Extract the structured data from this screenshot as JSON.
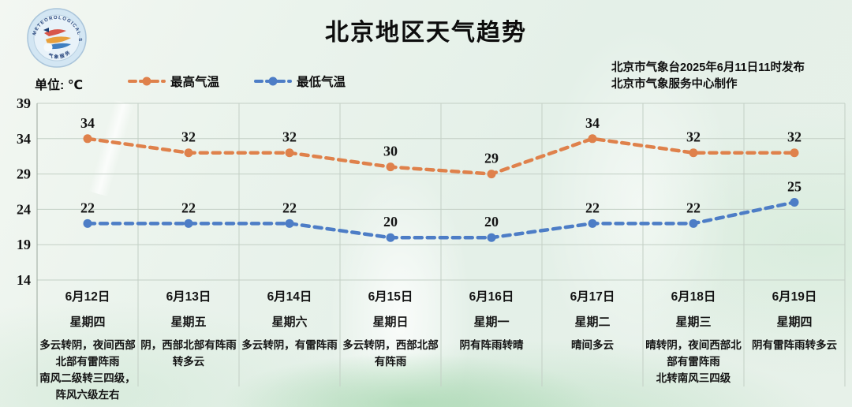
{
  "header": {
    "title": "北京地区天气趋势",
    "publisher_line1": "北京市气象台2025年6月11日11时发布",
    "publisher_line2": "北京市气象服务中心制作",
    "logo_ring_text": "METEOROLOGICAL SERVICE"
  },
  "legend": {
    "unit_label": "单位: ℃",
    "max_label": "最高气温",
    "min_label": "最低气温",
    "max_color": "#df814b",
    "min_color": "#4d7dc6"
  },
  "chart_data": {
    "type": "line",
    "line_style": "dashed",
    "grid": true,
    "legend_position": "top-left",
    "ylabel": "℃",
    "ylim": [
      14,
      39
    ],
    "yticks": [
      39,
      34,
      29,
      24,
      19,
      14
    ],
    "categories": [
      "6月12日",
      "6月13日",
      "6月14日",
      "6月15日",
      "6月16日",
      "6月17日",
      "6月18日",
      "6月19日"
    ],
    "series": [
      {
        "name": "最高气温",
        "color": "#df814b",
        "values": [
          34,
          32,
          32,
          30,
          29,
          34,
          32,
          32
        ]
      },
      {
        "name": "最低气温",
        "color": "#4d7dc6",
        "values": [
          22,
          22,
          22,
          20,
          20,
          22,
          22,
          25
        ]
      }
    ]
  },
  "forecast": [
    {
      "date": "6月12日",
      "weekday": "星期四",
      "weather": "多云转阴，夜间西部北部有雷阵雨",
      "wind": "南风二级转三四级，阵风六级左右"
    },
    {
      "date": "6月13日",
      "weekday": "星期五",
      "weather": "阴，西部北部有阵雨转多云",
      "wind": ""
    },
    {
      "date": "6月14日",
      "weekday": "星期六",
      "weather": "多云转阴，有雷阵雨",
      "wind": ""
    },
    {
      "date": "6月15日",
      "weekday": "星期日",
      "weather": "多云转阴，西部北部有阵雨",
      "wind": ""
    },
    {
      "date": "6月16日",
      "weekday": "星期一",
      "weather": "阴有阵雨转晴",
      "wind": ""
    },
    {
      "date": "6月17日",
      "weekday": "星期二",
      "weather": "晴间多云",
      "wind": ""
    },
    {
      "date": "6月18日",
      "weekday": "星期三",
      "weather": "晴转阴，夜间西部北部有雷阵雨",
      "wind": "北转南风三四级"
    },
    {
      "date": "6月19日",
      "weekday": "星期四",
      "weather": "阴有雷阵雨转多云",
      "wind": ""
    }
  ],
  "chart_colors": {
    "gridline": "#c3cfc5",
    "axis": "#9aa79c",
    "label": "#131313"
  }
}
